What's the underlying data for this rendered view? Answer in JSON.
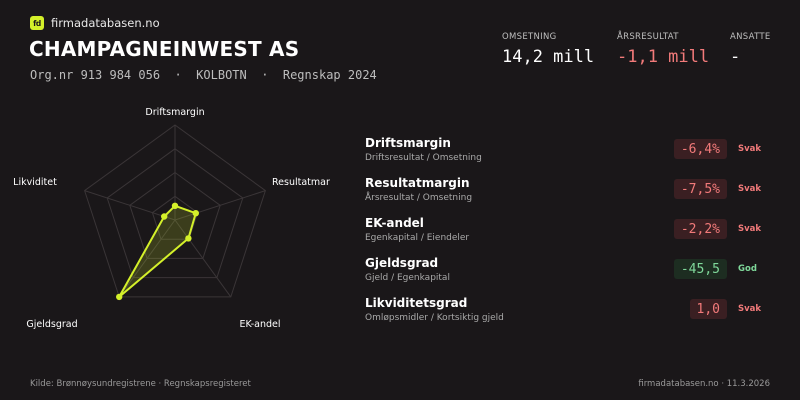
{
  "brand": {
    "logo_text": "fd",
    "name": "firmadatabasen.no"
  },
  "company": {
    "name": "CHAMPAGNEINWEST AS",
    "meta": "Org.nr 913 984 056  ·  KOLBOTN  ·  Regnskap 2024"
  },
  "kpis": {
    "revenue": {
      "label": "OMSETNING",
      "value": "14,2 mill"
    },
    "result": {
      "label": "ÅRSRESULTAT",
      "value": "-1,1 mill"
    },
    "employees": {
      "label": "ANSATTE",
      "value": "-"
    }
  },
  "radar": {
    "axes": [
      "Driftsmargin",
      "Resultatmargin",
      "EK-andel",
      "Gjeldsgrad",
      "Likviditet"
    ],
    "scores": [
      0.15,
      0.23,
      0.24,
      1.0,
      0.12
    ],
    "line_color": "#d4f02a"
  },
  "metrics": [
    {
      "name": "Driftsmargin",
      "formula": "Driftsresultat / Omsetning",
      "value": "-6,4%",
      "status": "Svak",
      "tone": "bad"
    },
    {
      "name": "Resultatmargin",
      "formula": "Årsresultat / Omsetning",
      "value": "-7,5%",
      "status": "Svak",
      "tone": "bad"
    },
    {
      "name": "EK-andel",
      "formula": "Egenkapital / Eiendeler",
      "value": "-2,2%",
      "status": "Svak",
      "tone": "bad"
    },
    {
      "name": "Gjeldsgrad",
      "formula": "Gjeld / Egenkapital",
      "value": "-45,5",
      "status": "God",
      "tone": "good"
    },
    {
      "name": "Likviditetsgrad",
      "formula": "Omløpsmidler / Kortsiktig gjeld",
      "value": "1,0",
      "status": "Svak",
      "tone": "bad"
    }
  ],
  "footer": {
    "source": "Kilde: Brønnøysundregistrene · Regnskapsregisteret",
    "site_date": "firmadatabasen.no · 11.3.2026"
  }
}
